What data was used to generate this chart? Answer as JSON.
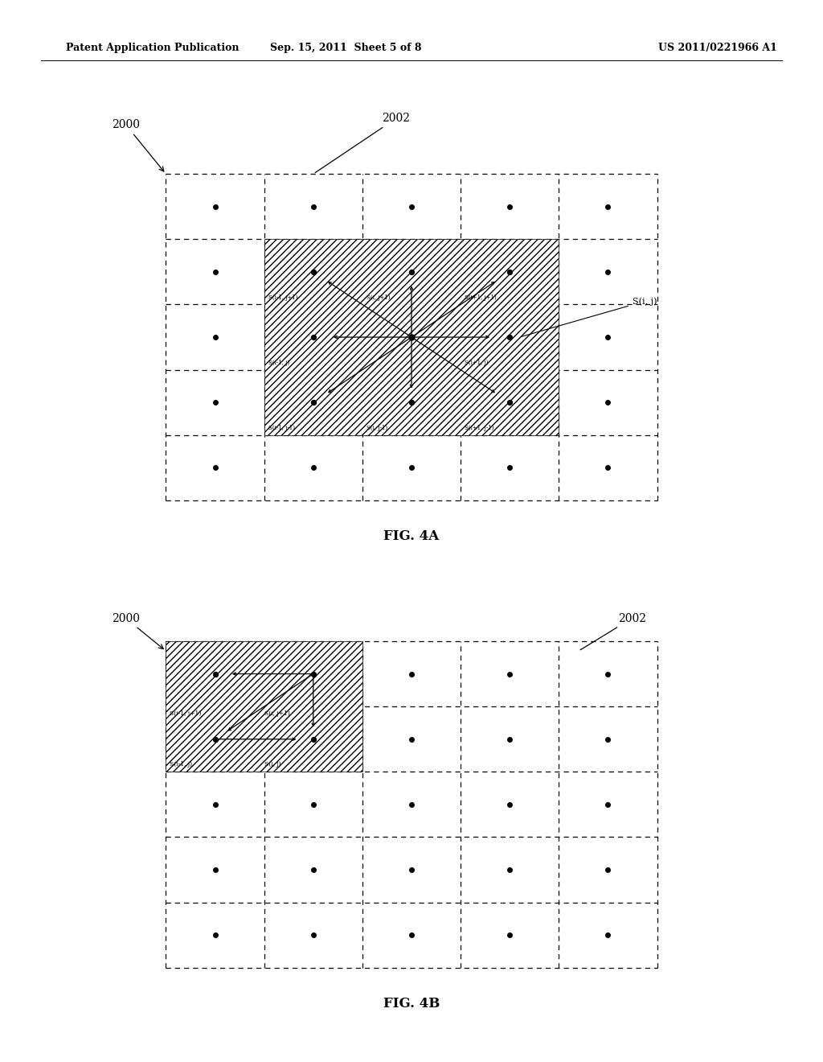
{
  "header_left": "Patent Application Publication",
  "header_center": "Sep. 15, 2011  Sheet 5 of 8",
  "header_right": "US 2011/0221966 A1",
  "fig4a_label": "FIG. 4A",
  "fig4b_label": "FIG. 4B",
  "label_2000_a": "2000",
  "label_2002_a": "2002",
  "label_2000_b": "2000",
  "label_2002_b": "2002",
  "label_sij": "S(i, j)",
  "bg_color": "#ffffff"
}
